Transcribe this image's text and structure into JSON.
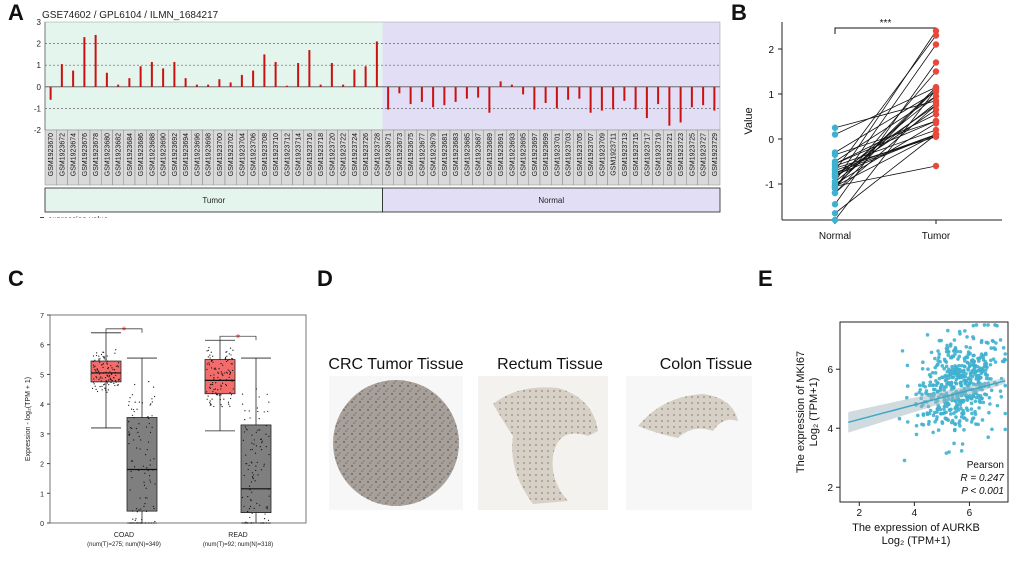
{
  "labels": {
    "a": "A",
    "b": "B",
    "c": "C",
    "d": "D",
    "e": "E"
  },
  "colors": {
    "red": "#cc1111",
    "tumorBg": "#e3f5ec",
    "normalBg": "#e2def5",
    "blue": "#3fb0cf",
    "pink": "#f26c6c",
    "grey": "#7f7f7f"
  },
  "panelA": {
    "chart_data": {
      "type": "bar",
      "title": "GSE74602 / GPL6104 / ILMN_1684217",
      "ylim": [
        -2,
        3
      ],
      "yticks": [
        -2,
        -1,
        0,
        1,
        2,
        3
      ],
      "tumor": {
        "label": "Tumor",
        "samples": [
          "GSM1923670",
          "GSM1923672",
          "GSM1923674",
          "GSM1923676",
          "GSM1923678",
          "GSM1923680",
          "GSM1923682",
          "GSM1923684",
          "GSM1923686",
          "GSM1923688",
          "GSM1923690",
          "GSM1923692",
          "GSM1923694",
          "GSM1923696",
          "GSM1923698",
          "GSM1923700",
          "GSM1923702",
          "GSM1923704",
          "GSM1923706",
          "GSM1923708",
          "GSM1923710",
          "GSM1923712",
          "GSM1923714",
          "GSM1923716",
          "GSM1923718",
          "GSM1923720",
          "GSM1923722",
          "GSM1923724",
          "GSM1923726",
          "GSM1923728"
        ],
        "values": [
          -0.6,
          1.05,
          0.75,
          2.3,
          2.4,
          0.65,
          0.1,
          0.4,
          0.95,
          1.15,
          0.85,
          1.15,
          0.4,
          0.1,
          0.1,
          0.35,
          0.2,
          0.55,
          0.75,
          1.5,
          1.15,
          0.05,
          1.1,
          1.7,
          0.1,
          1.1,
          0.1,
          0.8,
          0.95,
          2.1
        ]
      },
      "normal": {
        "label": "Normal",
        "samples": [
          "GSM1923671",
          "GSM1923673",
          "GSM1923675",
          "GSM1923677",
          "GSM1923679",
          "GSM1923681",
          "GSM1923683",
          "GSM1923685",
          "GSM1923687",
          "GSM1923689",
          "GSM1923691",
          "GSM1923693",
          "GSM1923695",
          "GSM1923697",
          "GSM1923699",
          "GSM1923701",
          "GSM1923703",
          "GSM1923705",
          "GSM1923707",
          "GSM1923709",
          "GSM1923711",
          "GSM1923713",
          "GSM1923715",
          "GSM1923717",
          "GSM1923719",
          "GSM1923721",
          "GSM1923723",
          "GSM1923725",
          "GSM1923727",
          "GSM1923729"
        ],
        "values": [
          -1.05,
          -0.3,
          -0.8,
          -0.7,
          -0.95,
          -0.85,
          -0.7,
          -0.55,
          -0.5,
          -1.2,
          0.25,
          0.1,
          -0.35,
          -1.05,
          -0.75,
          -1.0,
          -0.6,
          -0.55,
          -1.2,
          -1.1,
          -1.05,
          -0.65,
          -1.05,
          -1.45,
          -0.8,
          -1.8,
          -1.65,
          -0.95,
          -0.85,
          -1.1
        ]
      },
      "legend": "expression value"
    }
  },
  "panelB": {
    "chart_data": {
      "type": "paired-scatter",
      "ylabel": "Value",
      "ylim": [
        -1.8,
        2.6
      ],
      "yticks": [
        -1,
        0,
        1,
        2
      ],
      "categories": [
        "Normal",
        "Tumor"
      ],
      "significance": "***",
      "normal": [
        -1.05,
        -0.3,
        -0.8,
        -0.7,
        -0.95,
        -0.85,
        -0.7,
        -0.55,
        -0.5,
        -1.2,
        0.25,
        0.1,
        -0.35,
        -1.05,
        -0.75,
        -1.0,
        -0.6,
        -0.55,
        -1.2,
        -1.1,
        -1.05,
        -0.65,
        -1.05,
        -1.45,
        -0.8,
        -1.8,
        -1.65,
        -0.95,
        -0.85,
        -1.1
      ],
      "tumor": [
        -0.6,
        1.05,
        0.75,
        2.3,
        2.4,
        0.65,
        0.1,
        0.4,
        0.95,
        1.15,
        0.85,
        1.15,
        0.4,
        0.1,
        0.1,
        0.35,
        0.2,
        0.55,
        0.75,
        1.5,
        1.15,
        0.05,
        1.1,
        1.7,
        0.1,
        1.1,
        0.1,
        0.8,
        0.95,
        2.1
      ]
    }
  },
  "panelC": {
    "chart_data": {
      "type": "boxplot",
      "ylabel": "Expression - log₂(TPM + 1)",
      "ylim": [
        0,
        7
      ],
      "yticks": [
        0,
        1,
        2,
        3,
        4,
        5,
        6,
        7
      ],
      "significance": "*",
      "groups": [
        {
          "name": "COAD",
          "caption": "(num(T)=275; num(N)=349)",
          "tumor": {
            "min": 3.2,
            "q1": 4.75,
            "median": 5.05,
            "q3": 5.45,
            "max": 6.4
          },
          "normal": {
            "min": 0,
            "q1": 0.4,
            "median": 1.8,
            "q3": 3.55,
            "max": 5.55
          }
        },
        {
          "name": "READ",
          "caption": "(num(T)=92; num(N)=318)",
          "tumor": {
            "min": 3.1,
            "q1": 4.35,
            "median": 4.8,
            "q3": 5.5,
            "max": 6.15
          },
          "normal": {
            "min": 0,
            "q1": 0.35,
            "median": 1.15,
            "q3": 3.3,
            "max": 5.55
          }
        }
      ]
    }
  },
  "panelD": {
    "titles": [
      "CRC Tumor Tissue",
      "Rectum Tissue",
      "Colon Tissue"
    ]
  },
  "panelE": {
    "chart_data": {
      "type": "scatter",
      "xlabel": "The expression of AURKB",
      "xlabel_sub": "Log₂ (TPM+1)",
      "ylabel": "The expression of MKI67",
      "ylabel_sub": "Log₂ (TPM+1)",
      "xlim": [
        1.3,
        7.4
      ],
      "ylim": [
        1.5,
        7.6
      ],
      "xticks": [
        2,
        4,
        6
      ],
      "yticks": [
        2,
        4,
        6
      ],
      "fit": {
        "slope": 0.247,
        "intercept": 4.2
      },
      "stats": {
        "method": "Pearson",
        "R": "R = 0.247",
        "P": "P < 0.001"
      }
    }
  }
}
